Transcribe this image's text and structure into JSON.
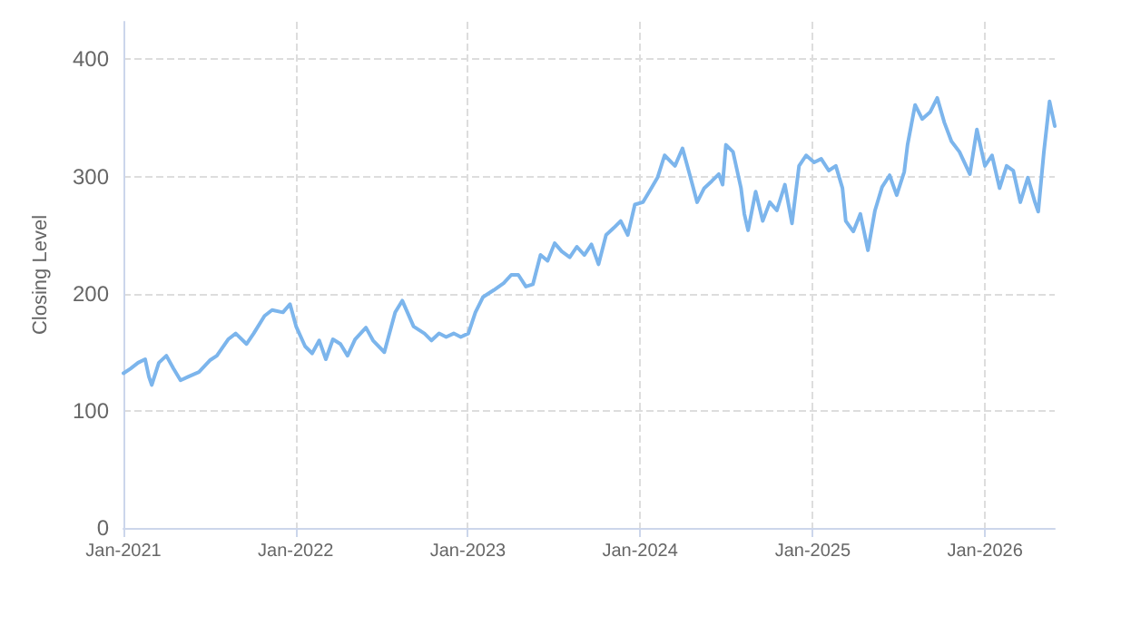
{
  "chart_data": {
    "type": "line",
    "ylabel": "Closing Level",
    "xlim": [
      "2021-01-01",
      "2026-05-29"
    ],
    "xticks": [
      {
        "value": "2021-01-01",
        "label": "Jan-2021"
      },
      {
        "value": "2022-01-01",
        "label": "Jan-2022"
      },
      {
        "value": "2023-01-01",
        "label": "Jan-2023"
      },
      {
        "value": "2024-01-01",
        "label": "Jan-2024"
      },
      {
        "value": "2025-01-01",
        "label": "Jan-2025"
      },
      {
        "value": "2026-01-01",
        "label": "Jan-2026"
      }
    ],
    "ylim": [
      0,
      432
    ],
    "yticks": [
      0,
      100,
      200,
      300,
      400
    ],
    "grid": true,
    "line_style": "solid",
    "marker": "none",
    "series": [
      {
        "color": "#7cb5ec",
        "x": [
          "2021-01-01",
          "2021-01-16",
          "2021-02-01",
          "2021-02-16",
          "2021-02-24",
          "2021-03-02",
          "2021-03-17",
          "2021-04-02",
          "2021-04-17",
          "2021-05-02",
          "2021-05-18",
          "2021-06-10",
          "2021-07-03",
          "2021-07-18",
          "2021-08-11",
          "2021-08-27",
          "2021-09-19",
          "2021-10-04",
          "2021-10-27",
          "2021-11-12",
          "2021-12-05",
          "2021-12-20",
          "2022-01-02",
          "2022-01-21",
          "2022-02-05",
          "2022-02-20",
          "2022-03-06",
          "2022-03-21",
          "2022-04-06",
          "2022-04-21",
          "2022-05-07",
          "2022-05-30",
          "2022-06-14",
          "2022-07-08",
          "2022-07-31",
          "2022-08-15",
          "2022-09-08",
          "2022-10-01",
          "2022-10-16",
          "2022-11-01",
          "2022-11-16",
          "2022-12-02",
          "2022-12-17",
          "2023-01-02",
          "2023-01-17",
          "2023-02-02",
          "2023-02-25",
          "2023-03-18",
          "2023-04-03",
          "2023-04-18",
          "2023-05-04",
          "2023-05-19",
          "2023-06-04",
          "2023-06-19",
          "2023-07-04",
          "2023-07-19",
          "2023-08-05",
          "2023-08-20",
          "2023-09-05",
          "2023-09-20",
          "2023-10-05",
          "2023-10-21",
          "2023-11-06",
          "2023-11-21",
          "2023-12-06",
          "2023-12-21",
          "2024-01-07",
          "2024-01-22",
          "2024-02-07",
          "2024-02-22",
          "2024-03-15",
          "2024-03-31",
          "2024-04-15",
          "2024-05-01",
          "2024-05-16",
          "2024-06-01",
          "2024-06-16",
          "2024-06-24",
          "2024-07-01",
          "2024-07-16",
          "2024-08-02",
          "2024-08-09",
          "2024-08-17",
          "2024-09-02",
          "2024-09-17",
          "2024-10-02",
          "2024-10-17",
          "2024-11-03",
          "2024-11-18",
          "2024-12-03",
          "2024-12-18",
          "2025-01-04",
          "2025-01-19",
          "2025-02-04",
          "2025-02-19",
          "2025-03-05",
          "2025-03-12",
          "2025-03-28",
          "2025-04-12",
          "2025-04-28",
          "2025-05-13",
          "2025-05-28",
          "2025-06-13",
          "2025-06-28",
          "2025-07-14",
          "2025-07-21",
          "2025-08-06",
          "2025-08-21",
          "2025-09-07",
          "2025-09-22",
          "2025-10-07",
          "2025-10-22",
          "2025-11-08",
          "2025-11-30",
          "2025-12-15",
          "2026-01-01",
          "2026-01-16",
          "2026-02-01",
          "2026-02-16",
          "2026-03-02",
          "2026-03-17",
          "2026-04-02",
          "2026-04-17",
          "2026-04-24",
          "2026-05-06",
          "2026-05-18",
          "2026-05-29"
        ],
        "values": [
          132,
          136,
          141,
          144,
          129,
          122,
          141,
          147,
          136,
          126,
          129,
          133,
          143,
          147,
          161,
          166,
          157,
          166,
          181,
          186,
          184,
          191,
          172,
          155,
          149,
          160,
          144,
          161,
          157,
          147,
          161,
          171,
          160,
          150,
          184,
          194,
          172,
          166,
          160,
          166,
          163,
          166,
          163,
          166,
          184,
          197,
          203,
          209,
          216,
          216,
          206,
          208,
          233,
          228,
          243,
          236,
          231,
          240,
          233,
          242,
          225,
          250,
          256,
          262,
          250,
          276,
          278,
          288,
          299,
          318,
          309,
          324,
          302,
          278,
          290,
          296,
          302,
          293,
          327,
          321,
          290,
          268,
          254,
          287,
          262,
          278,
          271,
          293,
          260,
          309,
          318,
          312,
          315,
          305,
          309,
          290,
          262,
          253,
          268,
          237,
          271,
          291,
          301,
          284,
          304,
          327,
          361,
          349,
          355,
          367,
          346,
          330,
          321,
          302,
          340,
          309,
          318,
          290,
          309,
          305,
          278,
          299,
          278,
          270,
          321,
          364,
          343
        ]
      }
    ]
  }
}
